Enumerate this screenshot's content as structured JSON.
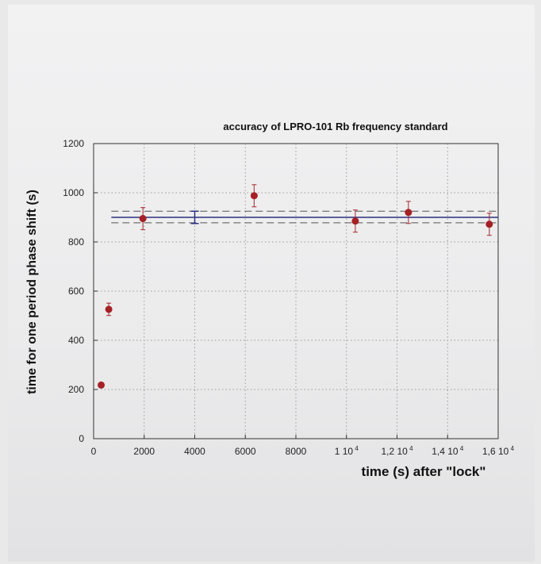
{
  "chart_data": {
    "type": "scatter",
    "title": "accuracy of LPRO-101 Rb frequency standard",
    "xlabel": "time (s) after \"lock\"",
    "ylabel": "time for one period phase shift (s)",
    "xlim": [
      0,
      16000
    ],
    "ylim": [
      0,
      1200
    ],
    "grid": true,
    "x_ticks": [
      {
        "value": 0,
        "label": "0"
      },
      {
        "value": 2000,
        "label": "2000"
      },
      {
        "value": 4000,
        "label": "4000"
      },
      {
        "value": 6000,
        "label": "6000"
      },
      {
        "value": 8000,
        "label": "8000"
      },
      {
        "value": 10000,
        "label": "1 10",
        "exp": "4"
      },
      {
        "value": 12000,
        "label": "1,2 10",
        "exp": "4"
      },
      {
        "value": 14000,
        "label": "1,4 10",
        "exp": "4"
      },
      {
        "value": 16000,
        "label": "1,6 10",
        "exp": "4"
      }
    ],
    "y_ticks": [
      {
        "value": 0,
        "label": "0"
      },
      {
        "value": 200,
        "label": "200"
      },
      {
        "value": 400,
        "label": "400"
      },
      {
        "value": 600,
        "label": "600"
      },
      {
        "value": 800,
        "label": "800"
      },
      {
        "value": 1000,
        "label": "1000"
      },
      {
        "value": 1200,
        "label": "1200"
      }
    ],
    "points": [
      {
        "x": 300,
        "y": 218,
        "err": 0
      },
      {
        "x": 600,
        "y": 526,
        "err": 25
      },
      {
        "x": 1950,
        "y": 895,
        "err": 45
      },
      {
        "x": 6350,
        "y": 988,
        "err": 45
      },
      {
        "x": 10350,
        "y": 885,
        "err": 45
      },
      {
        "x": 12450,
        "y": 920,
        "err": 45
      },
      {
        "x": 15650,
        "y": 872,
        "err": 45
      }
    ],
    "mean": {
      "value": 900,
      "x_from": 700,
      "x_to": 16000,
      "err_x": 4000,
      "err": 25
    },
    "bounds": [
      {
        "value": 925,
        "x_from": 700,
        "x_to": 16000
      },
      {
        "value": 878,
        "x_from": 700,
        "x_to": 16000
      }
    ],
    "colors": {
      "points": "#a52025",
      "mean": "#2c3180",
      "bounds": "#555555"
    }
  }
}
